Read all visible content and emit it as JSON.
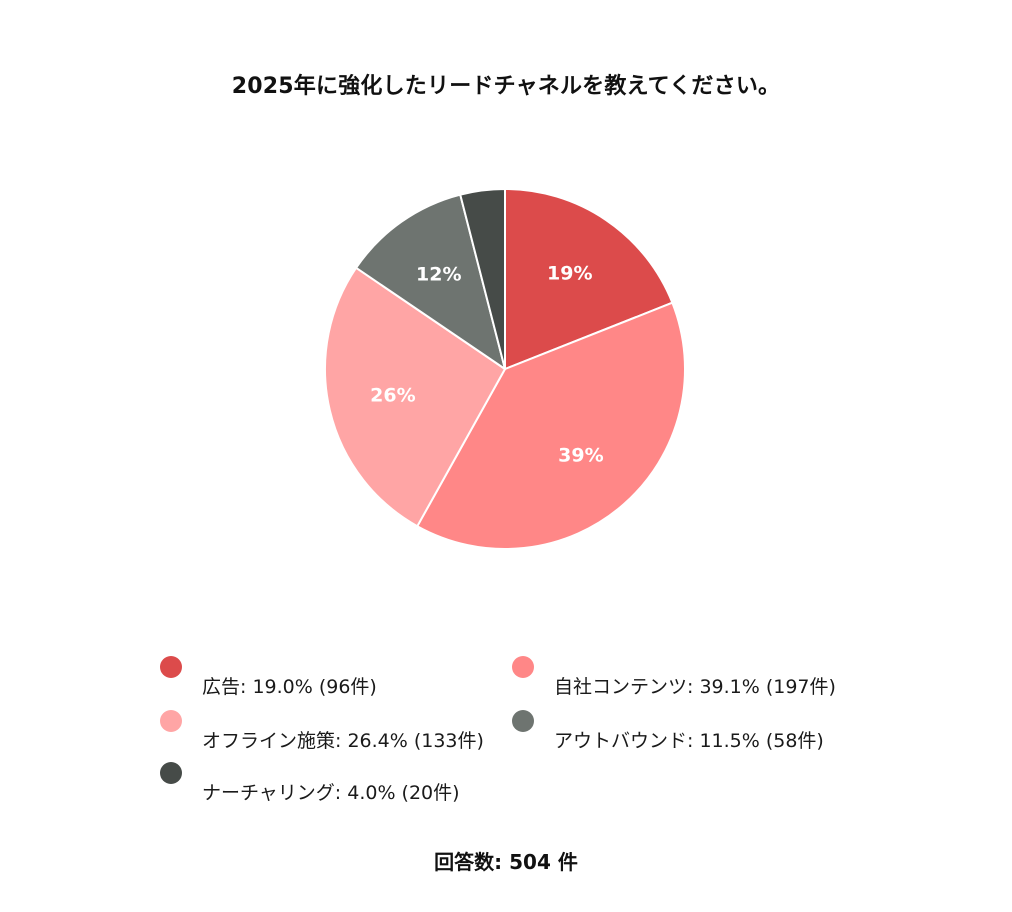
{
  "title": "2025年に強化したリードチャネルを教えてください。",
  "chart_data": {
    "type": "pie",
    "title": "2025年に強化したリードチャネルを教えてください。",
    "start_angle": "12 o'clock",
    "direction": "clockwise",
    "slices": [
      {
        "name": "広告",
        "percent": 19.0,
        "count": 96,
        "label": "19%",
        "legend": "広告: 19.0% (96件)",
        "color": "#dc4b4b"
      },
      {
        "name": "自社コンテンツ",
        "percent": 39.1,
        "count": 197,
        "label": "39%",
        "legend": "自社コンテンツ: 39.1% (197件)",
        "color": "#ff8787"
      },
      {
        "name": "オフライン施策",
        "percent": 26.4,
        "count": 133,
        "label": "26%",
        "legend": "オフライン施策: 26.4% (133件)",
        "color": "#ffa5a5"
      },
      {
        "name": "アウトバウンド",
        "percent": 11.5,
        "count": 58,
        "label": "12%",
        "legend": "アウトバウンド: 11.5% (58件)",
        "color": "#6e7470"
      },
      {
        "name": "ナーチャリング",
        "percent": 4.0,
        "count": 20,
        "label": "",
        "legend": "ナーチャリング: 4.0% (20件)",
        "color": "#464b48"
      }
    ],
    "legend_position": "bottom",
    "total_label": "回答数: 504 件"
  }
}
